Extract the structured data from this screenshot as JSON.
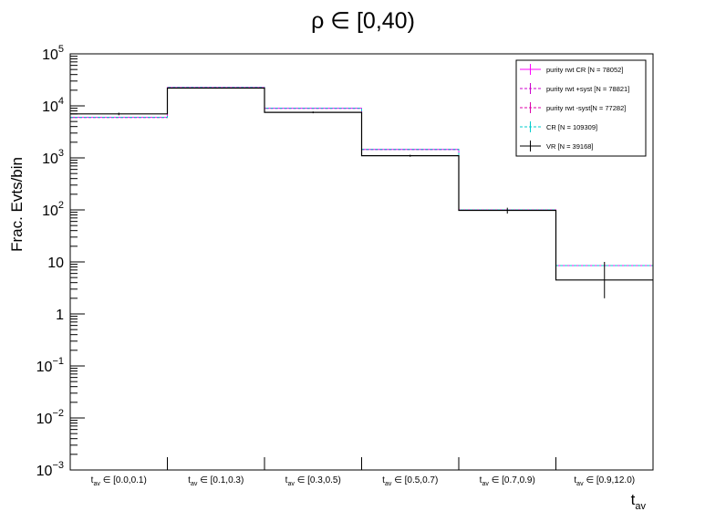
{
  "chart_data": {
    "type": "histogram-step",
    "title": "ρ ∈ [0,40)",
    "ylabel": "Frac. Evts/bin",
    "xlabel": {
      "main": "t",
      "sub": "av"
    },
    "yscale": "log",
    "ylim": [
      0.001,
      100000
    ],
    "y_ticks": [
      {
        "base": "10",
        "sup": "−3",
        "value": 0.001
      },
      {
        "base": "10",
        "sup": "−2",
        "value": 0.01
      },
      {
        "base": "10",
        "sup": "−1",
        "value": 0.1
      },
      {
        "base": "1",
        "sup": "",
        "value": 1
      },
      {
        "base": "10",
        "sup": "",
        "value": 10
      },
      {
        "base": "10",
        "sup": "2",
        "value": 100
      },
      {
        "base": "10",
        "sup": "3",
        "value": 1000
      },
      {
        "base": "10",
        "sup": "4",
        "value": 10000
      },
      {
        "base": "10",
        "sup": "5",
        "value": 100000
      }
    ],
    "categories": [
      {
        "main": "t",
        "sub": "av",
        "range": " ∈ [0.0,0.1)"
      },
      {
        "main": "t",
        "sub": "av",
        "range": " ∈ [0.1,0.3)"
      },
      {
        "main": "t",
        "sub": "av",
        "range": " ∈ [0.3,0.5)"
      },
      {
        "main": "t",
        "sub": "av",
        "range": " ∈ [0.5,0.7)"
      },
      {
        "main": "t",
        "sub": "av",
        "range": " ∈ [0.7,0.9)"
      },
      {
        "main": "t",
        "sub": "av",
        "range": " ∈ [0.9,12.0)"
      }
    ],
    "legend_position": "top-right",
    "series": [
      {
        "name": "purity rwt CR [N = 78052]",
        "color": "#ff00ff",
        "dash": "",
        "values": [
          6000,
          22500,
          9000,
          1450,
          100,
          8.5
        ]
      },
      {
        "name": "purity rwt +syst [N = 78821]",
        "color": "#cc00cc",
        "dash": "3,2",
        "values": [
          6000,
          22500,
          9000,
          1450,
          100,
          8.5
        ]
      },
      {
        "name": "purity rwt -syst[N = 77282]",
        "color": "#dd00aa",
        "dash": "3,2",
        "values": [
          6000,
          22500,
          9000,
          1450,
          100,
          8.5
        ]
      },
      {
        "name": "CR [N = 109309]",
        "color": "#00cccc",
        "dash": "3,2",
        "values": [
          6000,
          22500,
          9000,
          1450,
          100,
          8.5
        ]
      },
      {
        "name": "VR [N = 39168]",
        "color": "#000000",
        "dash": "",
        "values": [
          7000,
          22000,
          7500,
          1100,
          98,
          4.5
        ]
      }
    ],
    "vr_errors": [
      {
        "bin": 0,
        "lo": 6600,
        "hi": 7400
      },
      {
        "bin": 1,
        "lo": 21500,
        "hi": 22500
      },
      {
        "bin": 2,
        "lo": 7200,
        "hi": 7800
      },
      {
        "bin": 3,
        "lo": 1050,
        "hi": 1150
      },
      {
        "bin": 4,
        "lo": 85,
        "hi": 110
      },
      {
        "bin": 5,
        "lo": 2,
        "hi": 10
      }
    ]
  }
}
